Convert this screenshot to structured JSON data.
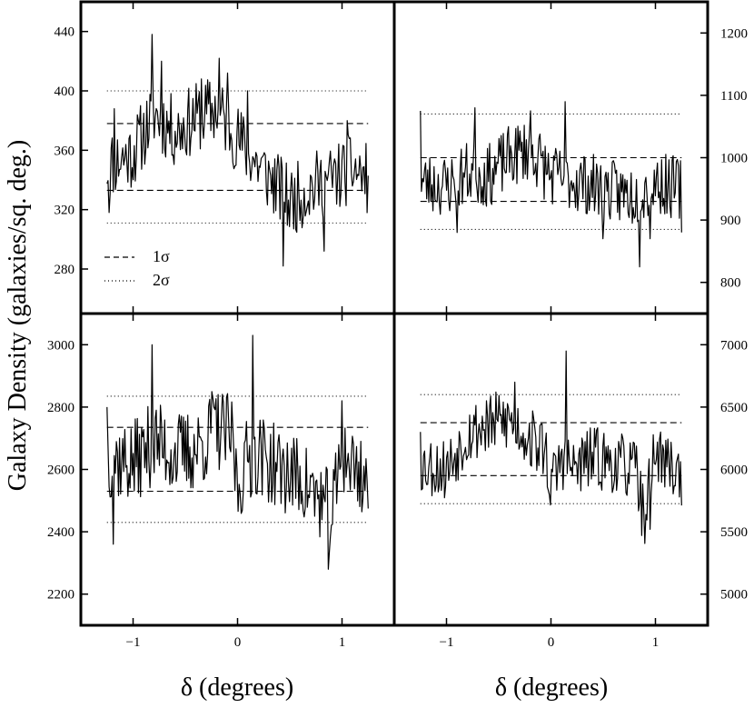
{
  "chart_data": [
    {
      "panel": "top-left",
      "type": "line",
      "y_axis_side": "left",
      "ylim": [
        250,
        460
      ],
      "yticks": [
        280,
        320,
        360,
        400,
        440
      ],
      "xlim": [
        -1.5,
        1.5
      ],
      "xticks": [
        -1,
        0,
        1
      ],
      "x_range": [
        -1.25,
        1.25
      ],
      "one_sigma": [
        333,
        378
      ],
      "two_sigma": [
        311,
        400
      ],
      "profile": [
        [
          -1.25,
          350
        ],
        [
          -1.0,
          358
        ],
        [
          -0.8,
          385
        ],
        [
          -0.6,
          372
        ],
        [
          -0.4,
          382
        ],
        [
          -0.2,
          388
        ],
        [
          0.0,
          368
        ],
        [
          0.2,
          350
        ],
        [
          0.35,
          338
        ],
        [
          0.5,
          325
        ],
        [
          0.7,
          335
        ],
        [
          0.9,
          340
        ],
        [
          1.1,
          348
        ],
        [
          1.25,
          340
        ]
      ],
      "spikes": [
        [
          -1.23,
          318
        ],
        [
          -1.18,
          388
        ],
        [
          -0.82,
          438
        ],
        [
          -0.73,
          420
        ],
        [
          -0.35,
          408
        ],
        [
          -0.18,
          422
        ],
        [
          -0.1,
          412
        ],
        [
          0.1,
          400
        ],
        [
          0.44,
          282
        ],
        [
          0.83,
          292
        ],
        [
          1.05,
          380
        ]
      ],
      "noise_amplitude": 15,
      "points": 250,
      "seed": 11
    },
    {
      "panel": "top-right",
      "type": "line",
      "y_axis_side": "right",
      "ylim": [
        750,
        1250
      ],
      "yticks": [
        800,
        900,
        1000,
        1100,
        1200
      ],
      "xlim": [
        -1.5,
        1.5
      ],
      "xticks": [
        -1,
        0,
        1
      ],
      "x_range": [
        -1.25,
        1.25
      ],
      "one_sigma": [
        930,
        1000
      ],
      "two_sigma": [
        885,
        1070
      ],
      "profile": [
        [
          -1.25,
          960
        ],
        [
          -1.0,
          955
        ],
        [
          -0.8,
          975
        ],
        [
          -0.6,
          970
        ],
        [
          -0.4,
          1000
        ],
        [
          -0.2,
          1015
        ],
        [
          0.0,
          970
        ],
        [
          0.2,
          965
        ],
        [
          0.4,
          955
        ],
        [
          0.6,
          945
        ],
        [
          0.8,
          940
        ],
        [
          1.0,
          960
        ],
        [
          1.25,
          950
        ]
      ],
      "spikes": [
        [
          -1.25,
          1075
        ],
        [
          -0.73,
          1080
        ],
        [
          -0.9,
          880
        ],
        [
          -0.2,
          1075
        ],
        [
          0.14,
          1090
        ],
        [
          0.5,
          870
        ],
        [
          0.85,
          825
        ],
        [
          0.95,
          870
        ],
        [
          1.25,
          880
        ]
      ],
      "noise_amplitude": 32,
      "points": 250,
      "seed": 23
    },
    {
      "panel": "bottom-left",
      "type": "line",
      "y_axis_side": "left",
      "ylim": [
        2100,
        3100
      ],
      "yticks": [
        2200,
        2400,
        2600,
        2800,
        3000
      ],
      "xlim": [
        -1.5,
        1.5
      ],
      "xticks": [
        -1,
        0,
        1
      ],
      "x_range": [
        -1.25,
        1.25
      ],
      "one_sigma": [
        2530,
        2735
      ],
      "two_sigma": [
        2430,
        2835
      ],
      "profile": [
        [
          -1.25,
          2640
        ],
        [
          -1.0,
          2620
        ],
        [
          -0.8,
          2690
        ],
        [
          -0.6,
          2650
        ],
        [
          -0.4,
          2660
        ],
        [
          -0.2,
          2730
        ],
        [
          -0.05,
          2700
        ],
        [
          0.0,
          2540
        ],
        [
          0.1,
          2640
        ],
        [
          0.2,
          2650
        ],
        [
          0.4,
          2600
        ],
        [
          0.6,
          2570
        ],
        [
          0.8,
          2500
        ],
        [
          0.9,
          2450
        ],
        [
          1.0,
          2650
        ],
        [
          1.25,
          2560
        ]
      ],
      "spikes": [
        [
          -1.25,
          2800
        ],
        [
          -1.19,
          2360
        ],
        [
          -0.82,
          3000
        ],
        [
          -0.25,
          2850
        ],
        [
          0.15,
          3030
        ],
        [
          0.87,
          2280
        ],
        [
          1.0,
          2820
        ]
      ],
      "noise_amplitude": 85,
      "points": 250,
      "seed": 37
    },
    {
      "panel": "bottom-right",
      "type": "line",
      "y_axis_side": "right",
      "ylim": [
        4750,
        7250
      ],
      "yticks": [
        5000,
        5500,
        6000,
        6500,
        7000
      ],
      "xlim": [
        -1.5,
        1.5
      ],
      "xticks": [
        -1,
        0,
        1
      ],
      "x_range": [
        -1.25,
        1.25
      ],
      "one_sigma": [
        5950,
        6375
      ],
      "two_sigma": [
        5725,
        6600
      ],
      "profile": [
        [
          -1.25,
          6050
        ],
        [
          -1.0,
          6000
        ],
        [
          -0.8,
          6300
        ],
        [
          -0.6,
          6350
        ],
        [
          -0.4,
          6400
        ],
        [
          -0.2,
          6250
        ],
        [
          -0.05,
          6150
        ],
        [
          0.0,
          5850
        ],
        [
          0.1,
          6100
        ],
        [
          0.2,
          6000
        ],
        [
          0.4,
          6100
        ],
        [
          0.6,
          6050
        ],
        [
          0.8,
          6000
        ],
        [
          0.9,
          5650
        ],
        [
          1.0,
          6150
        ],
        [
          1.25,
          5950
        ]
      ],
      "spikes": [
        [
          -1.25,
          6300
        ],
        [
          -0.62,
          6550
        ],
        [
          -0.35,
          6700
        ],
        [
          0.15,
          6950
        ],
        [
          0.87,
          5470
        ],
        [
          0.95,
          5520
        ],
        [
          1.05,
          6300
        ]
      ],
      "noise_amplitude": 160,
      "points": 250,
      "seed": 53
    }
  ],
  "labels": {
    "ylabel": "Galaxy Density (galaxies/sq. deg.)",
    "xlabel_left": "δ (degrees)",
    "xlabel_right": "δ (degrees)",
    "legend": {
      "one_sigma": "1σ",
      "two_sigma": "2σ"
    }
  }
}
